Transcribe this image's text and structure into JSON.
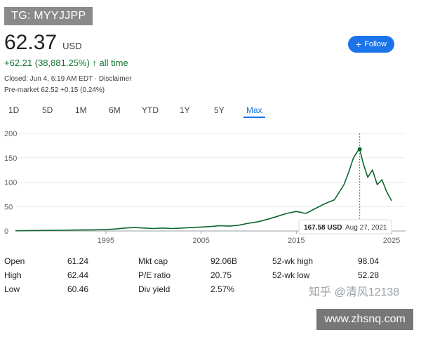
{
  "watermark_top": "TG: MYYJJPP",
  "quote": {
    "price": "62.37",
    "currency": "USD",
    "change": "+62.21 (38,881.25%)",
    "change_period": "all time",
    "closed_line": "Closed: Jun 4, 6:19 AM EDT · Disclaimer",
    "premarket_line": "Pre-market 62.52 +0.15 (0.24%)"
  },
  "follow_button": {
    "label": "Follow",
    "icon": "plus-icon",
    "color": "#1a73e8"
  },
  "ranges": {
    "tabs": [
      "1D",
      "5D",
      "1M",
      "6M",
      "YTD",
      "1Y",
      "5Y",
      "Max"
    ],
    "active": "Max"
  },
  "chart_data": {
    "type": "line",
    "x_tick_labels": [
      "1995",
      "2005",
      "2015",
      "2025"
    ],
    "y_tick_labels": [
      "0",
      "50",
      "100",
      "150",
      "200"
    ],
    "ylim": [
      0,
      200
    ],
    "xlim": [
      1985.5,
      2025
    ],
    "grid": true,
    "line_color": "#0d652d",
    "series": [
      {
        "x": [
          1985.5,
          1988,
          1990,
          1992,
          1994,
          1995,
          1996,
          1997,
          1998,
          1999,
          2000,
          2001,
          2002,
          2003,
          2004,
          2005,
          2006,
          2007,
          2008,
          2009,
          2010,
          2011,
          2012,
          2013,
          2014,
          2015,
          2016,
          2017,
          2018,
          2019,
          2020,
          2020.5,
          2021,
          2021.5,
          2021.66,
          2022,
          2022.5,
          2023,
          2023.5,
          2024,
          2024.5,
          2025
        ],
        "y": [
          0.5,
          1,
          1.5,
          2,
          2.5,
          3,
          4,
          6,
          7,
          6,
          5,
          6,
          5,
          6,
          7,
          8,
          9,
          11,
          10,
          12,
          16,
          19,
          24,
          30,
          36,
          40,
          36,
          46,
          56,
          64,
          95,
          120,
          150,
          165,
          167.58,
          140,
          110,
          125,
          95,
          105,
          80,
          62
        ]
      }
    ],
    "tooltip": {
      "value": "167.58 USD",
      "date": "Aug 27, 2021"
    }
  },
  "stats": {
    "col1": [
      {
        "label": "Open",
        "value": "61.24"
      },
      {
        "label": "High",
        "value": "62.44"
      },
      {
        "label": "Low",
        "value": "60.46"
      }
    ],
    "col2": [
      {
        "label": "Mkt cap",
        "value": "92.06B"
      },
      {
        "label": "P/E ratio",
        "value": "20.75"
      },
      {
        "label": "Div yield",
        "value": "2.57%"
      }
    ],
    "col3": [
      {
        "label": "52-wk high",
        "value": "98.04"
      },
      {
        "label": "52-wk low",
        "value": "52.28"
      }
    ]
  },
  "watermark_zhihu": "知乎 @清风12138",
  "watermark_site": "www.zhsnq.com"
}
